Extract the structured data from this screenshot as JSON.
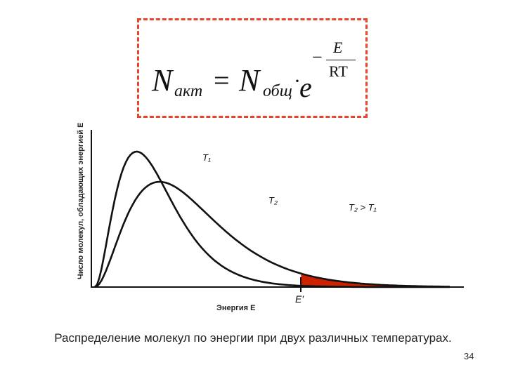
{
  "formula": {
    "n": "N",
    "sub_act": "акт",
    "equals": "=",
    "n2": "N",
    "sub_total": "общ",
    "dot": "·",
    "e": "e",
    "minus": "−",
    "numerator": "E",
    "denominator": "RT"
  },
  "chart_data": {
    "type": "line",
    "ylabel": "Число молекул, обладающих энергией E",
    "xlabel": "Энергия E",
    "threshold_label": "E′",
    "relation_label": "T₂ > T₁",
    "series": [
      {
        "name": "T₁",
        "color": "#111111"
      },
      {
        "name": "T₂",
        "color": "#111111"
      }
    ],
    "shaded_region_color": "#cc2200",
    "grid": false
  },
  "caption": "Распределение молекул по энергии при двух различных температурах.",
  "page_number": "34"
}
